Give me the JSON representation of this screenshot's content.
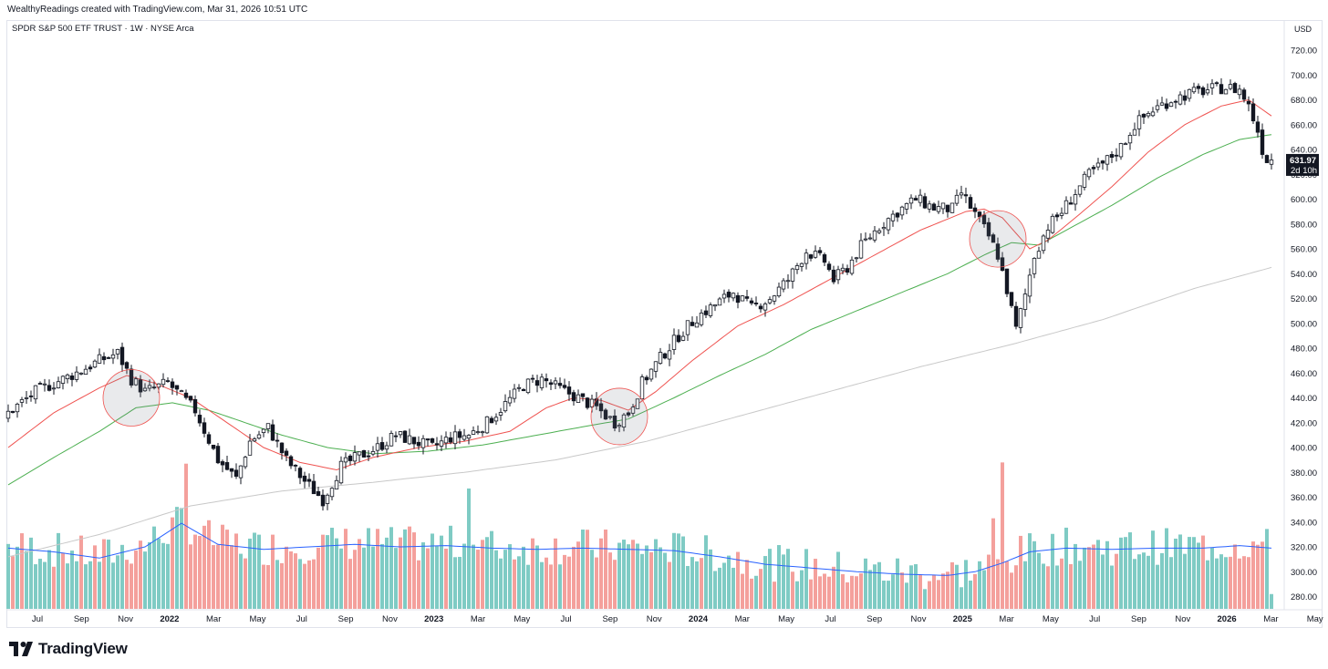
{
  "header": {
    "attribution": "WealthyReadings created with TradingView.com, Mar 31, 2026 10:51 UTC"
  },
  "chart_title": "SPDR S&P 500 ETF TRUST · 1W · NYSE Arca",
  "currency": "USD",
  "last_price": {
    "value": "631.97",
    "countdown": "2d 10h",
    "color": "#131722"
  },
  "footer": {
    "brand": "TradingView"
  },
  "colors": {
    "up_candle": "#ffffff",
    "down_candle": "#131722",
    "vol_up": "#7fcbc4",
    "vol_down": "#f4a09c",
    "ma_fast": "#ef5350",
    "ma_mid": "#4caf50",
    "ma_slow": "#c8c8c8",
    "vol_ma": "#2962ff",
    "highlight": "#ef5350"
  },
  "chart_data": {
    "type": "candlestick",
    "interval": "1W",
    "ylim": [
      270,
      735
    ],
    "y_ticks": [
      "720.00",
      "700.00",
      "680.00",
      "660.00",
      "640.00",
      "620.00",
      "600.00",
      "580.00",
      "560.00",
      "540.00",
      "520.00",
      "500.00",
      "480.00",
      "460.00",
      "440.00",
      "420.00",
      "400.00",
      "380.00",
      "360.00",
      "340.00",
      "320.00",
      "300.00",
      "280.00"
    ],
    "x_ticks": [
      {
        "label": "Jul",
        "bold": false
      },
      {
        "label": "Sep",
        "bold": false
      },
      {
        "label": "Nov",
        "bold": false
      },
      {
        "label": "2022",
        "bold": true
      },
      {
        "label": "Mar",
        "bold": false
      },
      {
        "label": "May",
        "bold": false
      },
      {
        "label": "Jul",
        "bold": false
      },
      {
        "label": "Sep",
        "bold": false
      },
      {
        "label": "Nov",
        "bold": false
      },
      {
        "label": "2023",
        "bold": true
      },
      {
        "label": "Mar",
        "bold": false
      },
      {
        "label": "May",
        "bold": false
      },
      {
        "label": "Jul",
        "bold": false
      },
      {
        "label": "Sep",
        "bold": false
      },
      {
        "label": "Nov",
        "bold": false
      },
      {
        "label": "2024",
        "bold": true
      },
      {
        "label": "Mar",
        "bold": false
      },
      {
        "label": "May",
        "bold": false
      },
      {
        "label": "Jul",
        "bold": false
      },
      {
        "label": "Sep",
        "bold": false
      },
      {
        "label": "Nov",
        "bold": false
      },
      {
        "label": "2025",
        "bold": true
      },
      {
        "label": "Mar",
        "bold": false
      },
      {
        "label": "May",
        "bold": false
      },
      {
        "label": "Jul",
        "bold": false
      },
      {
        "label": "Sep",
        "bold": false
      },
      {
        "label": "Nov",
        "bold": false
      },
      {
        "label": "2026",
        "bold": true
      },
      {
        "label": "Mar",
        "bold": false
      },
      {
        "label": "May",
        "bold": false
      }
    ],
    "price_path": [
      [
        0,
        425
      ],
      [
        7,
        445
      ],
      [
        13,
        455
      ],
      [
        17,
        462
      ],
      [
        21,
        470
      ],
      [
        25,
        476
      ],
      [
        28,
        455
      ],
      [
        31,
        445
      ],
      [
        36,
        452
      ],
      [
        42,
        430
      ],
      [
        47,
        390
      ],
      [
        51,
        375
      ],
      [
        54,
        405
      ],
      [
        58,
        416
      ],
      [
        62,
        390
      ],
      [
        66,
        373
      ],
      [
        70,
        358
      ],
      [
        74,
        385
      ],
      [
        78,
        393
      ],
      [
        82,
        400
      ],
      [
        86,
        410
      ],
      [
        90,
        405
      ],
      [
        94,
        400
      ],
      [
        98,
        408
      ],
      [
        102,
        410
      ],
      [
        106,
        420
      ],
      [
        110,
        435
      ],
      [
        114,
        450
      ],
      [
        118,
        455
      ],
      [
        122,
        447
      ],
      [
        126,
        440
      ],
      [
        130,
        432
      ],
      [
        134,
        420
      ],
      [
        137,
        428
      ],
      [
        140,
        452
      ],
      [
        144,
        472
      ],
      [
        148,
        490
      ],
      [
        152,
        505
      ],
      [
        156,
        515
      ],
      [
        160,
        525
      ],
      [
        164,
        512
      ],
      [
        168,
        520
      ],
      [
        172,
        535
      ],
      [
        176,
        558
      ],
      [
        180,
        550
      ],
      [
        182,
        535
      ],
      [
        185,
        545
      ],
      [
        188,
        562
      ],
      [
        192,
        578
      ],
      [
        196,
        590
      ],
      [
        200,
        600
      ],
      [
        204,
        593
      ],
      [
        208,
        592
      ],
      [
        210,
        605
      ],
      [
        213,
        588
      ],
      [
        216,
        570
      ],
      [
        218,
        555
      ],
      [
        220,
        527
      ],
      [
        222,
        495
      ],
      [
        224,
        523
      ],
      [
        226,
        555
      ],
      [
        229,
        578
      ],
      [
        232,
        590
      ],
      [
        235,
        605
      ],
      [
        238,
        620
      ],
      [
        241,
        628
      ],
      [
        245,
        642
      ],
      [
        248,
        660
      ],
      [
        252,
        672
      ],
      [
        256,
        680
      ],
      [
        260,
        685
      ],
      [
        264,
        688
      ],
      [
        268,
        690
      ],
      [
        271,
        688
      ],
      [
        273,
        675
      ],
      [
        275,
        655
      ],
      [
        276,
        640
      ],
      [
        277,
        632
      ]
    ],
    "ma_fast": [
      [
        0,
        400
      ],
      [
        10,
        428
      ],
      [
        20,
        448
      ],
      [
        26,
        458
      ],
      [
        32,
        452
      ],
      [
        40,
        440
      ],
      [
        48,
        420
      ],
      [
        56,
        400
      ],
      [
        64,
        388
      ],
      [
        72,
        382
      ],
      [
        80,
        392
      ],
      [
        90,
        400
      ],
      [
        100,
        405
      ],
      [
        110,
        413
      ],
      [
        118,
        432
      ],
      [
        124,
        440
      ],
      [
        130,
        438
      ],
      [
        136,
        430
      ],
      [
        142,
        445
      ],
      [
        150,
        470
      ],
      [
        160,
        498
      ],
      [
        170,
        515
      ],
      [
        180,
        535
      ],
      [
        190,
        555
      ],
      [
        200,
        575
      ],
      [
        210,
        590
      ],
      [
        214,
        592
      ],
      [
        218,
        585
      ],
      [
        224,
        560
      ],
      [
        228,
        567
      ],
      [
        234,
        585
      ],
      [
        242,
        610
      ],
      [
        250,
        638
      ],
      [
        258,
        660
      ],
      [
        266,
        675
      ],
      [
        272,
        680
      ],
      [
        277,
        667
      ]
    ],
    "ma_mid": [
      [
        0,
        370
      ],
      [
        10,
        392
      ],
      [
        20,
        413
      ],
      [
        28,
        432
      ],
      [
        36,
        436
      ],
      [
        44,
        430
      ],
      [
        52,
        420
      ],
      [
        60,
        410
      ],
      [
        70,
        400
      ],
      [
        80,
        395
      ],
      [
        92,
        397
      ],
      [
        104,
        402
      ],
      [
        116,
        410
      ],
      [
        128,
        418
      ],
      [
        136,
        423
      ],
      [
        146,
        440
      ],
      [
        156,
        458
      ],
      [
        166,
        475
      ],
      [
        176,
        495
      ],
      [
        186,
        510
      ],
      [
        196,
        525
      ],
      [
        206,
        540
      ],
      [
        214,
        555
      ],
      [
        220,
        565
      ],
      [
        226,
        563
      ],
      [
        232,
        575
      ],
      [
        242,
        595
      ],
      [
        252,
        617
      ],
      [
        262,
        636
      ],
      [
        270,
        648
      ],
      [
        277,
        652
      ]
    ],
    "ma_slow": [
      [
        0,
        312
      ],
      [
        20,
        330
      ],
      [
        40,
        353
      ],
      [
        60,
        365
      ],
      [
        80,
        372
      ],
      [
        100,
        380
      ],
      [
        120,
        390
      ],
      [
        140,
        405
      ],
      [
        160,
        425
      ],
      [
        180,
        445
      ],
      [
        200,
        465
      ],
      [
        220,
        483
      ],
      [
        240,
        503
      ],
      [
        260,
        528
      ],
      [
        277,
        545
      ]
    ],
    "volume_ma": [
      [
        0,
        319
      ],
      [
        10,
        316
      ],
      [
        20,
        311
      ],
      [
        30,
        320
      ],
      [
        38,
        339
      ],
      [
        46,
        322
      ],
      [
        56,
        318
      ],
      [
        66,
        320
      ],
      [
        76,
        322
      ],
      [
        86,
        320
      ],
      [
        96,
        321
      ],
      [
        106,
        319
      ],
      [
        116,
        318
      ],
      [
        126,
        319
      ],
      [
        136,
        318
      ],
      [
        146,
        317
      ],
      [
        156,
        312
      ],
      [
        166,
        306
      ],
      [
        176,
        303
      ],
      [
        186,
        300
      ],
      [
        196,
        298
      ],
      [
        206,
        297
      ],
      [
        212,
        300
      ],
      [
        218,
        307
      ],
      [
        224,
        316
      ],
      [
        232,
        319
      ],
      [
        242,
        318
      ],
      [
        252,
        319
      ],
      [
        262,
        319
      ],
      [
        270,
        321
      ],
      [
        277,
        319
      ]
    ],
    "highlight_circles": [
      {
        "week": 27,
        "price": 440
      },
      {
        "week": 134,
        "price": 425
      },
      {
        "week": 217,
        "price": 568
      }
    ]
  }
}
